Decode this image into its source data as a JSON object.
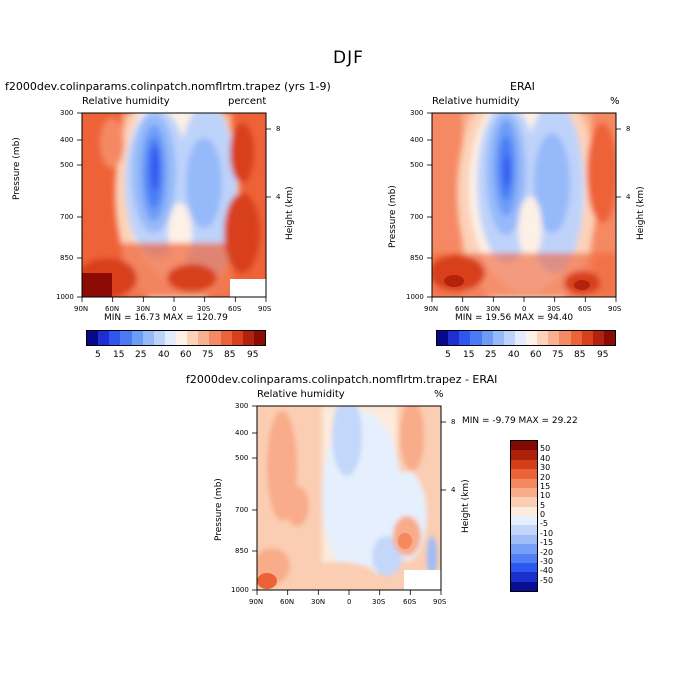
{
  "title": "DJF",
  "chart_data": [
    {
      "type": "heatmap",
      "title": "f2000dev.colinparams.colinpatch.nomflrtm.trapez (yrs 1-9)",
      "subtitle_left": "Relative humidity",
      "subtitle_right": "percent",
      "ylabel": "Pressure (mb)",
      "ylabel_right": "Height (km)",
      "x_ticks": [
        "90N",
        "60N",
        "30N",
        "0",
        "30S",
        "60S",
        "90S"
      ],
      "y_ticks": [
        "300",
        "400",
        "500",
        "700",
        "850",
        "1000"
      ],
      "y_right_ticks": [
        "8",
        "4"
      ],
      "stats": "MIN =  16.73   MAX = 120.79",
      "colorbar_labels": [
        "5",
        "15",
        "25",
        "40",
        "60",
        "75",
        "85",
        "95"
      ],
      "scale": "log-pressure",
      "ylim": [
        1000,
        300
      ]
    },
    {
      "type": "heatmap",
      "title": "ERAI",
      "subtitle_left": "Relative humidity",
      "subtitle_right": "%",
      "ylabel": "Pressure (mb)",
      "ylabel_right": "Height (km)",
      "x_ticks": [
        "90N",
        "60N",
        "30N",
        "0",
        "30S",
        "60S",
        "90S"
      ],
      "y_ticks": [
        "300",
        "400",
        "500",
        "700",
        "850",
        "1000"
      ],
      "y_right_ticks": [
        "8",
        "4"
      ],
      "stats": "MIN =  19.56   MAX =  94.40",
      "colorbar_labels": [
        "5",
        "15",
        "25",
        "40",
        "60",
        "75",
        "85",
        "95"
      ],
      "scale": "log-pressure",
      "ylim": [
        1000,
        300
      ]
    },
    {
      "type": "heatmap",
      "title": "f2000dev.colinparams.colinpatch.nomflrtm.trapez - ERAI",
      "subtitle_left": "Relative humidity",
      "subtitle_right": "%",
      "ylabel": "Pressure (mb)",
      "ylabel_right": "Height (km)",
      "x_ticks": [
        "90N",
        "60N",
        "30N",
        "0",
        "30S",
        "60S",
        "90S"
      ],
      "y_ticks": [
        "300",
        "400",
        "500",
        "700",
        "850",
        "1000"
      ],
      "y_right_ticks": [
        "8",
        "4"
      ],
      "stats": "MIN =   -9.79   MAX =  29.22",
      "colorbar_labels": [
        "50",
        "40",
        "30",
        "20",
        "15",
        "10",
        "5",
        "0",
        "-5",
        "-10",
        "-15",
        "-20",
        "-30",
        "-40",
        "-50"
      ],
      "scale": "log-pressure",
      "ylim": [
        1000,
        300
      ]
    }
  ],
  "colors": {
    "abs_scale": [
      "#08088c",
      "#1e2ed2",
      "#2f56f0",
      "#4a7bf5",
      "#6d9cf7",
      "#96b9f9",
      "#bed3fa",
      "#e2ecfc",
      "#fdf0e6",
      "#fcd2b8",
      "#f9b08e",
      "#f58963",
      "#ee6238",
      "#d8401c",
      "#b2220c",
      "#8c0b04"
    ],
    "diff_scale": [
      "#820a02",
      "#ac210b",
      "#d43e1b",
      "#ec6135",
      "#f4885f",
      "#f8ac89",
      "#fbcdb2",
      "#fdebdb",
      "#e6effd",
      "#c3d7fa",
      "#9dbcf8",
      "#759ff6",
      "#4f7ff3",
      "#2d57ee",
      "#1a31cc",
      "#0a0e92"
    ]
  }
}
